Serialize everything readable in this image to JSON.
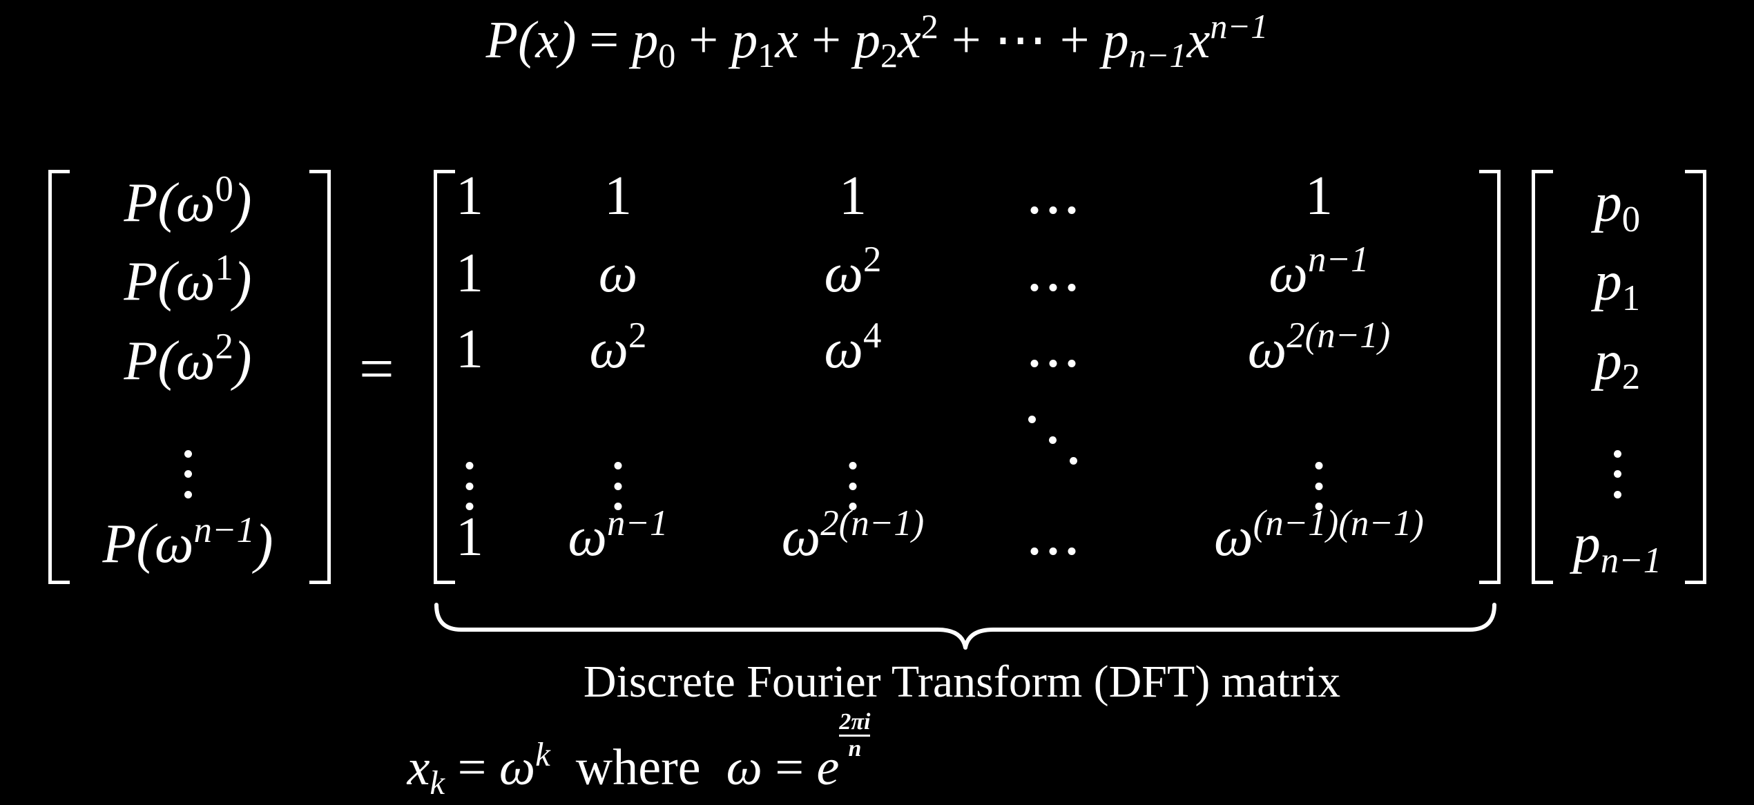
{
  "polynomial": {
    "lhs": "P(x)",
    "equals": "=",
    "p0": "p",
    "p0_sub": "0",
    "plus1": "+",
    "p1": "p",
    "p1_sub": "1",
    "x1": "x",
    "plus2": "+",
    "p2": "p",
    "p2_sub": "2",
    "x2": "x",
    "x2_sup": "2",
    "plus3": "+",
    "cdots": "⋯",
    "plus4": "+",
    "pn": "p",
    "pn_sub": "n−1",
    "xn": "x",
    "xn_sup": "n−1"
  },
  "lhs_vector": [
    {
      "base": "P(ω",
      "sup": "0",
      "close": ")"
    },
    {
      "base": "P(ω",
      "sup": "1",
      "close": ")"
    },
    {
      "base": "P(ω",
      "sup": "2",
      "close": ")"
    },
    {
      "base": "P(ω",
      "sup": "n−1",
      "close": ")"
    }
  ],
  "equals_sign": "=",
  "matrix": {
    "row0": [
      "1",
      "1",
      "1",
      "1"
    ],
    "row1": {
      "c0": "1",
      "c1": "ω",
      "c2_base": "ω",
      "c2_sup": "2",
      "c4_base": "ω",
      "c4_sup": "n−1"
    },
    "row2": {
      "c0": "1",
      "c1_base": "ω",
      "c1_sup": "2",
      "c2_base": "ω",
      "c2_sup": "4",
      "c4_base": "ω",
      "c4_sup": "2(n−1)"
    },
    "row4": {
      "c0": "1",
      "c1_base": "ω",
      "c1_sup": "n−1",
      "c2_base": "ω",
      "c2_sup": "2(n−1)",
      "c4_base": "ω",
      "c4_sup": "(n−1)(n−1)"
    }
  },
  "coef_vector": [
    {
      "base": "p",
      "sub": "0"
    },
    {
      "base": "p",
      "sub": "1"
    },
    {
      "base": "p",
      "sub": "2"
    },
    {
      "base": "p",
      "sub": "n−1"
    }
  ],
  "dft_label": "Discrete Fourier Transform (DFT) matrix",
  "definition": {
    "x": "x",
    "x_sub": "k",
    "eq1": "=",
    "omega": "ω",
    "omega_sup": "k",
    "where": "where",
    "omega2": "ω",
    "eq2": "=",
    "e": "e",
    "exp_num": "2πi",
    "exp_den": "n"
  }
}
